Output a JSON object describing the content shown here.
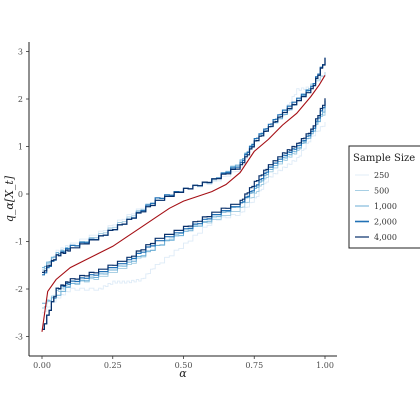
{
  "chart_data": {
    "type": "line",
    "title": "",
    "xlabel": "α",
    "ylabel": "q_α[X_t]",
    "xlim": [
      0,
      1
    ],
    "ylim": [
      -3.15,
      3.15
    ],
    "x_ticks": [
      0,
      0.25,
      0.5,
      0.75,
      1
    ],
    "x_tick_labels": [
      "0.00",
      "0.25",
      "0.50",
      "0.75",
      "1.00"
    ],
    "y_ticks": [
      -3,
      -2,
      -1,
      0,
      1,
      2,
      3
    ],
    "y_tick_labels": [
      "-3",
      "-2",
      "-1",
      "0",
      "1",
      "2",
      "3"
    ],
    "grid": false,
    "legend": {
      "title": "Sample Size",
      "placement": "right",
      "entries": [
        {
          "label": "250",
          "color": "#deebf7"
        },
        {
          "label": "500",
          "color": "#9ecae1"
        },
        {
          "label": "1,000",
          "color": "#6baed6"
        },
        {
          "label": "2,000",
          "color": "#2171b5"
        },
        {
          "label": "4,000",
          "color": "#08306b"
        }
      ]
    },
    "true_quantile_color": "#a50f15",
    "band_series": [
      {
        "sample_size": "250",
        "color": "#deebf7",
        "upper_points": [
          [
            0.0,
            -1.65
          ],
          [
            0.05,
            -1.2
          ],
          [
            0.1,
            -1.05
          ],
          [
            0.2,
            -0.8
          ],
          [
            0.3,
            -0.45
          ],
          [
            0.4,
            -0.1
          ],
          [
            0.5,
            0.1
          ],
          [
            0.6,
            0.25
          ],
          [
            0.7,
            0.55
          ],
          [
            0.75,
            1.1
          ],
          [
            0.8,
            1.4
          ],
          [
            0.85,
            1.7
          ],
          [
            0.9,
            2.2
          ],
          [
            0.95,
            2.25
          ],
          [
            1.0,
            2.55
          ]
        ],
        "lower_points": [
          [
            0.0,
            -2.5
          ],
          [
            0.05,
            -2.2
          ],
          [
            0.1,
            -2.0
          ],
          [
            0.2,
            -2.0
          ],
          [
            0.25,
            -1.85
          ],
          [
            0.3,
            -1.85
          ],
          [
            0.35,
            -1.8
          ],
          [
            0.4,
            -1.5
          ],
          [
            0.5,
            -1.05
          ],
          [
            0.6,
            -0.55
          ],
          [
            0.7,
            -0.4
          ],
          [
            0.75,
            -0.1
          ],
          [
            0.8,
            0.35
          ],
          [
            0.85,
            0.55
          ],
          [
            0.9,
            0.75
          ],
          [
            0.95,
            1.2
          ],
          [
            1.0,
            1.5
          ]
        ]
      },
      {
        "sample_size": "500",
        "color": "#9ecae1",
        "upper_points": [
          [
            0.0,
            -1.6
          ],
          [
            0.05,
            -1.25
          ],
          [
            0.1,
            -1.1
          ],
          [
            0.2,
            -0.85
          ],
          [
            0.3,
            -0.5
          ],
          [
            0.4,
            -0.1
          ],
          [
            0.5,
            0.1
          ],
          [
            0.6,
            0.28
          ],
          [
            0.7,
            0.7
          ],
          [
            0.75,
            1.15
          ],
          [
            0.8,
            1.4
          ],
          [
            0.85,
            1.7
          ],
          [
            0.9,
            1.95
          ],
          [
            0.95,
            2.3
          ],
          [
            1.0,
            2.55
          ]
        ],
        "lower_points": [
          [
            0.0,
            -2.4
          ],
          [
            0.05,
            -2.05
          ],
          [
            0.1,
            -1.9
          ],
          [
            0.2,
            -1.75
          ],
          [
            0.3,
            -1.5
          ],
          [
            0.4,
            -1.1
          ],
          [
            0.5,
            -0.75
          ],
          [
            0.6,
            -0.55
          ],
          [
            0.7,
            -0.3
          ],
          [
            0.75,
            0.0
          ],
          [
            0.8,
            0.45
          ],
          [
            0.85,
            0.7
          ],
          [
            0.9,
            0.9
          ],
          [
            0.95,
            1.35
          ],
          [
            1.0,
            1.75
          ]
        ]
      },
      {
        "sample_size": "1,000",
        "color": "#6baed6",
        "upper_points": [
          [
            0.0,
            -1.55
          ],
          [
            0.05,
            -1.25
          ],
          [
            0.1,
            -1.1
          ],
          [
            0.2,
            -0.9
          ],
          [
            0.3,
            -0.55
          ],
          [
            0.4,
            -0.15
          ],
          [
            0.5,
            0.1
          ],
          [
            0.6,
            0.3
          ],
          [
            0.7,
            0.7
          ],
          [
            0.75,
            1.1
          ],
          [
            0.8,
            1.4
          ],
          [
            0.85,
            1.65
          ],
          [
            0.9,
            1.95
          ],
          [
            0.95,
            2.25
          ],
          [
            1.0,
            2.85
          ]
        ],
        "lower_points": [
          [
            0.0,
            -2.3
          ],
          [
            0.05,
            -2.15
          ],
          [
            0.1,
            -1.9
          ],
          [
            0.2,
            -1.7
          ],
          [
            0.3,
            -1.45
          ],
          [
            0.4,
            -1.1
          ],
          [
            0.5,
            -0.8
          ],
          [
            0.6,
            -0.5
          ],
          [
            0.7,
            -0.2
          ],
          [
            0.75,
            0.1
          ],
          [
            0.8,
            0.5
          ],
          [
            0.85,
            0.75
          ],
          [
            0.9,
            0.95
          ],
          [
            0.95,
            1.25
          ],
          [
            1.0,
            1.85
          ]
        ]
      },
      {
        "sample_size": "2,000",
        "color": "#2171b5",
        "upper_points": [
          [
            0.0,
            -1.7
          ],
          [
            0.05,
            -1.3
          ],
          [
            0.1,
            -1.1
          ],
          [
            0.2,
            -0.9
          ],
          [
            0.3,
            -0.55
          ],
          [
            0.4,
            -0.1
          ],
          [
            0.5,
            0.1
          ],
          [
            0.6,
            0.3
          ],
          [
            0.7,
            0.65
          ],
          [
            0.75,
            1.15
          ],
          [
            0.8,
            1.45
          ],
          [
            0.85,
            1.75
          ],
          [
            0.9,
            2.0
          ],
          [
            0.95,
            2.25
          ],
          [
            1.0,
            2.85
          ]
        ],
        "lower_points": [
          [
            0.0,
            -2.85
          ],
          [
            0.05,
            -2.0
          ],
          [
            0.1,
            -1.85
          ],
          [
            0.2,
            -1.65
          ],
          [
            0.3,
            -1.4
          ],
          [
            0.4,
            -1.0
          ],
          [
            0.5,
            -0.75
          ],
          [
            0.6,
            -0.45
          ],
          [
            0.7,
            -0.2
          ],
          [
            0.75,
            0.15
          ],
          [
            0.8,
            0.55
          ],
          [
            0.85,
            0.8
          ],
          [
            0.9,
            1.0
          ],
          [
            0.95,
            1.3
          ],
          [
            1.0,
            1.95
          ]
        ]
      },
      {
        "sample_size": "4,000",
        "color": "#08306b",
        "upper_points": [
          [
            0.0,
            -1.65
          ],
          [
            0.05,
            -1.3
          ],
          [
            0.1,
            -1.15
          ],
          [
            0.2,
            -0.9
          ],
          [
            0.3,
            -0.55
          ],
          [
            0.4,
            -0.15
          ],
          [
            0.5,
            0.1
          ],
          [
            0.6,
            0.3
          ],
          [
            0.7,
            0.6
          ],
          [
            0.75,
            1.1
          ],
          [
            0.8,
            1.4
          ],
          [
            0.85,
            1.7
          ],
          [
            0.9,
            1.95
          ],
          [
            0.95,
            2.2
          ],
          [
            1.0,
            2.85
          ]
        ],
        "lower_points": [
          [
            0.0,
            -2.85
          ],
          [
            0.05,
            -2.0
          ],
          [
            0.1,
            -1.8
          ],
          [
            0.2,
            -1.6
          ],
          [
            0.3,
            -1.35
          ],
          [
            0.4,
            -0.95
          ],
          [
            0.5,
            -0.7
          ],
          [
            0.6,
            -0.4
          ],
          [
            0.7,
            -0.15
          ],
          [
            0.75,
            0.25
          ],
          [
            0.8,
            0.6
          ],
          [
            0.85,
            0.85
          ],
          [
            0.9,
            1.05
          ],
          [
            0.95,
            1.35
          ],
          [
            1.0,
            2.0
          ]
        ]
      }
    ],
    "true_quantile_points": [
      [
        0.0,
        -2.9
      ],
      [
        0.02,
        -2.05
      ],
      [
        0.05,
        -1.8
      ],
      [
        0.1,
        -1.55
      ],
      [
        0.15,
        -1.4
      ],
      [
        0.2,
        -1.25
      ],
      [
        0.25,
        -1.1
      ],
      [
        0.3,
        -0.9
      ],
      [
        0.35,
        -0.7
      ],
      [
        0.4,
        -0.5
      ],
      [
        0.45,
        -0.3
      ],
      [
        0.5,
        -0.15
      ],
      [
        0.55,
        -0.05
      ],
      [
        0.6,
        0.05
      ],
      [
        0.65,
        0.2
      ],
      [
        0.7,
        0.45
      ],
      [
        0.75,
        0.9
      ],
      [
        0.8,
        1.15
      ],
      [
        0.85,
        1.45
      ],
      [
        0.9,
        1.7
      ],
      [
        0.95,
        2.05
      ],
      [
        0.98,
        2.3
      ],
      [
        1.0,
        2.5
      ]
    ]
  }
}
